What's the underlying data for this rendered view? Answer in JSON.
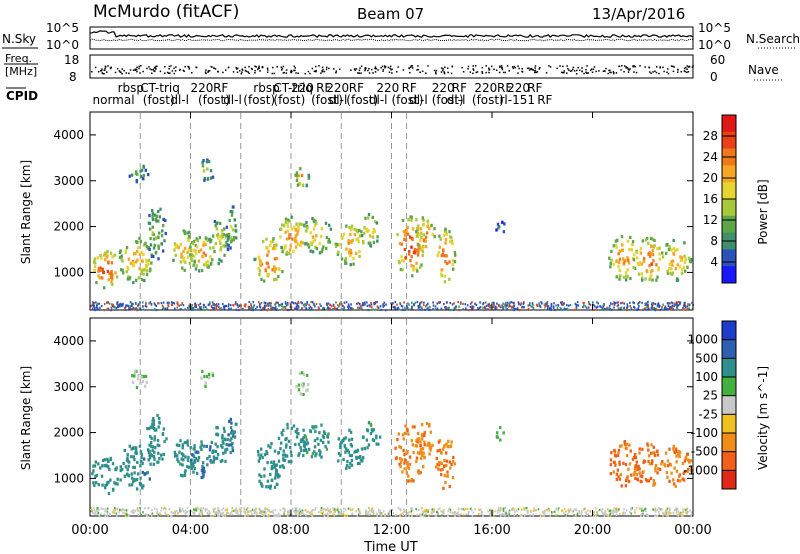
{
  "header": {
    "site": "McMurdo (fitACF)",
    "beam": "Beam 07",
    "date": "13/Apr/2016"
  },
  "noise_panel": {
    "left_label": "N.Sky",
    "right_label": "N.Search",
    "tick_top": "10^5",
    "tick_bottom": "10^0"
  },
  "freq_panel": {
    "left_label_1": "Freq.",
    "left_label_2": "[MHz]",
    "left_tick_top": "18",
    "left_tick_bottom": "8",
    "right_label": "Nave",
    "right_tick_top": "60",
    "right_tick_bottom": "0"
  },
  "cpid": {
    "label": "CPID",
    "modes": [
      {
        "text": "normal",
        "t": 0.1,
        "row": 1
      },
      {
        "text": "rbsp",
        "t": 1.1,
        "row": 0
      },
      {
        "text": "CT-triq",
        "t": 2.0,
        "row": 0
      },
      {
        "text": "(fost)",
        "t": 2.1,
        "row": 1
      },
      {
        "text": "dl-l",
        "t": 3.2,
        "row": 1
      },
      {
        "text": "220",
        "t": 4.0,
        "row": 0
      },
      {
        "text": "(fost)",
        "t": 4.3,
        "row": 1
      },
      {
        "text": "RF",
        "t": 4.9,
        "row": 0
      },
      {
        "text": "dl-l",
        "t": 5.3,
        "row": 1
      },
      {
        "text": "(fost)",
        "t": 6.1,
        "row": 1
      },
      {
        "text": "rbsp",
        "t": 6.5,
        "row": 0
      },
      {
        "text": "CT-triq",
        "t": 7.3,
        "row": 0
      },
      {
        "text": "(fost)",
        "t": 7.3,
        "row": 1
      },
      {
        "text": "220",
        "t": 8.0,
        "row": 0
      },
      {
        "text": "RF",
        "t": 9.0,
        "row": 0
      },
      {
        "text": "220",
        "t": 9.4,
        "row": 0
      },
      {
        "text": "RF",
        "t": 10.3,
        "row": 0
      },
      {
        "text": "220",
        "t": 11.4,
        "row": 0
      },
      {
        "text": "RF",
        "t": 12.4,
        "row": 0
      },
      {
        "text": "220",
        "t": 13.6,
        "row": 0
      },
      {
        "text": "RF",
        "t": 14.4,
        "row": 0
      },
      {
        "text": "220",
        "t": 15.3,
        "row": 0
      },
      {
        "text": "RF",
        "t": 16.2,
        "row": 0
      },
      {
        "text": "220",
        "t": 16.6,
        "row": 0
      },
      {
        "text": "RF",
        "t": 17.4,
        "row": 0
      },
      {
        "text": "(fost)",
        "t": 8.8,
        "row": 1
      },
      {
        "text": "dl-l",
        "t": 9.5,
        "row": 1
      },
      {
        "text": "(fost)",
        "t": 10.2,
        "row": 1
      },
      {
        "text": "dl-l",
        "t": 11.1,
        "row": 1
      },
      {
        "text": "(fost)",
        "t": 12.0,
        "row": 1
      },
      {
        "text": "dl-l",
        "t": 12.7,
        "row": 1
      },
      {
        "text": "(fost)",
        "t": 13.6,
        "row": 1
      },
      {
        "text": "dl-l",
        "t": 14.2,
        "row": 1
      },
      {
        "text": "(fost)",
        "t": 15.2,
        "row": 1
      },
      {
        "text": "rl-151",
        "t": 16.3,
        "row": 1
      },
      {
        "text": "RF",
        "t": 17.8,
        "row": 1
      }
    ]
  },
  "power_panel": {
    "ylabel": "Slant Range [km]",
    "yticks": [
      "1000",
      "2000",
      "3000",
      "4000"
    ],
    "colorbar": {
      "label": "Power [dB]",
      "ticks": [
        "4",
        "8",
        "12",
        "16",
        "20",
        "24",
        "28"
      ],
      "colors": [
        "#1818ff",
        "#2a52b8",
        "#3f8f6a",
        "#5da548",
        "#a8c83c",
        "#e6d430",
        "#f5a623",
        "#f07818",
        "#e84018",
        "#e01818"
      ]
    }
  },
  "velocity_panel": {
    "ylabel": "Slant Range [km]",
    "yticks": [
      "1000",
      "2000",
      "3000",
      "4000"
    ],
    "colorbar": {
      "label": "Velocity [m s^-1]",
      "ticks": [
        "1000",
        "500",
        "100",
        "25",
        "-25",
        "-100",
        "-500",
        "-1000"
      ],
      "colors": [
        "#1c3ccc",
        "#2f5fb0",
        "#2f8f8a",
        "#44b040",
        "#c8c8c8",
        "#f0c020",
        "#f08c18",
        "#f06018",
        "#e02818"
      ]
    }
  },
  "time_axis": {
    "xlabel": "Time UT",
    "ticks": [
      "00:00",
      "04:00",
      "08:00",
      "12:00",
      "16:00",
      "20:00",
      "00:00"
    ]
  },
  "chart_data": {
    "type": "heatmap",
    "title": "McMurdo (fitACF) Beam 07 13/Apr/2016",
    "xlabel": "Time UT",
    "ylabel": "Slant Range [km]",
    "xlim": [
      0,
      24
    ],
    "ylim": [
      180,
      4500
    ],
    "mode_change_times": [
      2.0,
      4.0,
      6.0,
      8.0,
      10.0,
      12.0,
      12.6
    ],
    "echo_blobs": [
      {
        "t": 0.6,
        "r": 1100,
        "dt": 0.6,
        "dr": 420,
        "power": 28,
        "vel": 200
      },
      {
        "t": 1.8,
        "r": 1300,
        "dt": 0.7,
        "dr": 500,
        "power": 22,
        "vel": 250
      },
      {
        "t": 2.6,
        "r": 1900,
        "dt": 0.4,
        "dr": 600,
        "power": 14,
        "vel": 150
      },
      {
        "t": 3.7,
        "r": 1500,
        "dt": 0.5,
        "dr": 450,
        "power": 22,
        "vel": 120
      },
      {
        "t": 4.4,
        "r": 1450,
        "dt": 0.5,
        "dr": 400,
        "power": 24,
        "vel": 300
      },
      {
        "t": 5.1,
        "r": 1700,
        "dt": 0.4,
        "dr": 500,
        "power": 18,
        "vel": 200
      },
      {
        "t": 5.6,
        "r": 2000,
        "dt": 0.2,
        "dr": 500,
        "power": 16,
        "vel": 300
      },
      {
        "t": 7.1,
        "r": 1300,
        "dt": 0.6,
        "dr": 500,
        "power": 26,
        "vel": 200
      },
      {
        "t": 8.0,
        "r": 1800,
        "dt": 0.6,
        "dr": 450,
        "power": 24,
        "vel": 150
      },
      {
        "t": 9.0,
        "r": 1850,
        "dt": 0.6,
        "dr": 400,
        "power": 20,
        "vel": 100
      },
      {
        "t": 10.3,
        "r": 1650,
        "dt": 0.6,
        "dr": 450,
        "power": 24,
        "vel": 120
      },
      {
        "t": 11.1,
        "r": 1950,
        "dt": 0.4,
        "dr": 350,
        "power": 20,
        "vel": 100
      },
      {
        "t": 12.7,
        "r": 1600,
        "dt": 0.6,
        "dr": 650,
        "power": 28,
        "vel": -300
      },
      {
        "t": 13.3,
        "r": 1850,
        "dt": 0.4,
        "dr": 400,
        "power": 24,
        "vel": -250
      },
      {
        "t": 14.1,
        "r": 1400,
        "dt": 0.4,
        "dr": 600,
        "power": 26,
        "vel": -300
      },
      {
        "t": 21.2,
        "r": 1350,
        "dt": 0.6,
        "dr": 500,
        "power": 24,
        "vel": -400
      },
      {
        "t": 22.2,
        "r": 1300,
        "dt": 0.6,
        "dr": 500,
        "power": 26,
        "vel": -350
      },
      {
        "t": 23.3,
        "r": 1300,
        "dt": 0.6,
        "dr": 450,
        "power": 22,
        "vel": -300
      },
      {
        "t": 4.6,
        "r": 3250,
        "dt": 0.3,
        "dr": 250,
        "power": 14,
        "vel": 30
      },
      {
        "t": 8.4,
        "r": 3100,
        "dt": 0.3,
        "dr": 250,
        "power": 22,
        "vel": 30
      },
      {
        "t": 1.9,
        "r": 3200,
        "dt": 0.4,
        "dr": 200,
        "power": 12,
        "vel": 30
      },
      {
        "t": 16.3,
        "r": 2000,
        "dt": 0.2,
        "dr": 150,
        "power": 10,
        "vel": 50
      }
    ]
  }
}
